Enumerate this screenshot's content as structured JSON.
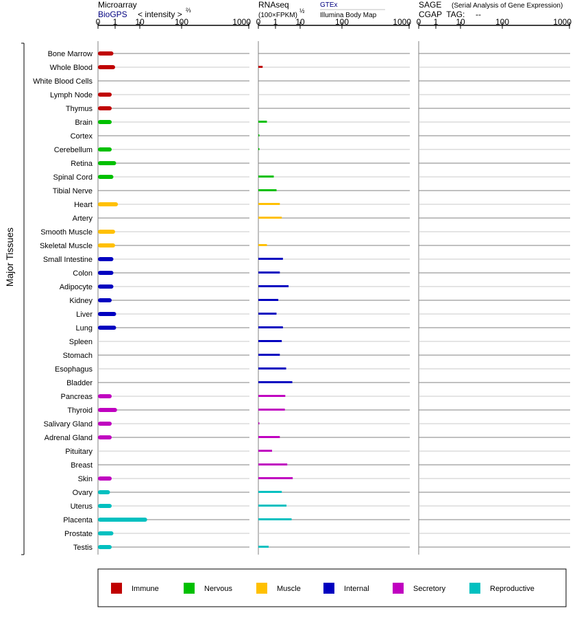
{
  "chart_data": {
    "type": "bar",
    "ylabel": "Major Tissues",
    "tissues": [
      "Bone Marrow",
      "Whole Blood",
      "White Blood Cells",
      "Lymph Node",
      "Thymus",
      "Brain",
      "Cortex",
      "Cerebellum",
      "Retina",
      "Spinal Cord",
      "Tibial Nerve",
      "Heart",
      "Artery",
      "Smooth Muscle",
      "Skeletal Muscle",
      "Small Intestine",
      "Colon",
      "Adipocyte",
      "Kidney",
      "Liver",
      "Lung",
      "Spleen",
      "Stomach",
      "Esophagus",
      "Bladder",
      "Pancreas",
      "Thyroid",
      "Salivary Gland",
      "Adrenal Gland",
      "Pituitary",
      "Breast",
      "Skin",
      "Ovary",
      "Uterus",
      "Placenta",
      "Prostate",
      "Testis"
    ],
    "groups": [
      "Immune",
      "Immune",
      "Immune",
      "Immune",
      "Immune",
      "Nervous",
      "Nervous",
      "Nervous",
      "Nervous",
      "Nervous",
      "Nervous",
      "Muscle",
      "Muscle",
      "Muscle",
      "Muscle",
      "Internal",
      "Internal",
      "Internal",
      "Internal",
      "Internal",
      "Internal",
      "Internal",
      "Internal",
      "Internal",
      "Internal",
      "Secretory",
      "Secretory",
      "Secretory",
      "Secretory",
      "Secretory",
      "Secretory",
      "Secretory",
      "Reproductive",
      "Reproductive",
      "Reproductive",
      "Reproductive",
      "Reproductive"
    ],
    "ticks": [
      "0",
      "1",
      "10",
      "100",
      "1000"
    ],
    "tick_values": [
      0,
      1,
      10,
      100,
      1000
    ],
    "panels": [
      {
        "title": "Microarray",
        "subtitle": "BioGPS",
        "axis_note": "< intensity >",
        "axis_note_sup": "⅔",
        "values": [
          0.9,
          1.0,
          null,
          0.8,
          0.8,
          0.8,
          null,
          0.8,
          1.1,
          0.9,
          null,
          1.3,
          null,
          1.0,
          1.0,
          0.9,
          0.9,
          0.9,
          0.8,
          1.1,
          1.1,
          null,
          null,
          null,
          null,
          0.8,
          1.2,
          0.8,
          0.8,
          null,
          null,
          0.8,
          0.7,
          0.8,
          15,
          0.9,
          0.8
        ]
      },
      {
        "title": "RNAseq",
        "subtitle": "(100×FPKM)",
        "subtitle_sup": "½",
        "source_1": "GTEx",
        "source_2": "Illumina Body Map",
        "values": [
          null,
          0.25,
          null,
          null,
          null,
          0.5,
          0.02,
          0.02,
          null,
          0.9,
          1.1,
          1.5,
          1.8,
          null,
          0.5,
          2.0,
          1.5,
          3.4,
          1.3,
          1.1,
          2.0,
          1.8,
          1.5,
          2.7,
          4.8,
          2.5,
          2.4,
          0.02,
          1.5,
          0.8,
          3.0,
          5.0,
          1.8,
          2.8,
          4.5,
          null,
          0.6
        ]
      },
      {
        "title": "SAGE",
        "title_note": "(Serial Analysis of Gene Expression)",
        "subtitle": "CGAP  TAG:",
        "tag_value": "--",
        "values": []
      }
    ],
    "legend": [
      {
        "name": "Immune",
        "color": "#c00000"
      },
      {
        "name": "Nervous",
        "color": "#00c000"
      },
      {
        "name": "Muscle",
        "color": "#ffc000"
      },
      {
        "name": "Internal",
        "color": "#0000c0"
      },
      {
        "name": "Secretory",
        "color": "#c000c0"
      },
      {
        "name": "Reproductive",
        "color": "#00c0c0"
      }
    ]
  }
}
